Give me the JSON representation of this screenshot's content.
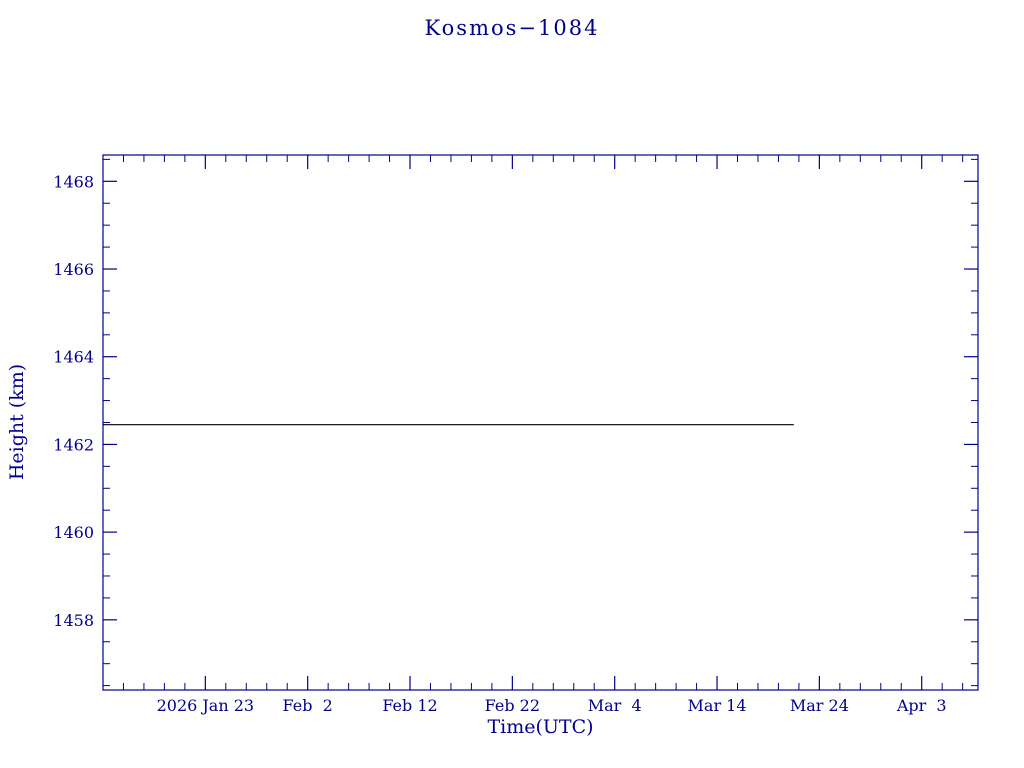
{
  "page": {
    "background": "#ffffff",
    "accent": "#00008b"
  },
  "chart_data": {
    "type": "line",
    "title": "Kosmos−1084",
    "xlabel": "Time(UTC)",
    "ylabel": "Height (km)",
    "axis_color": "#00008b",
    "grid": false,
    "x_domain": [
      -10,
      75.5
    ],
    "x_major_ticks": [
      {
        "day": 0,
        "label": "2026 Jan 23"
      },
      {
        "day": 10,
        "label": "Feb  2"
      },
      {
        "day": 20,
        "label": "Feb 12"
      },
      {
        "day": 30,
        "label": "Feb 22"
      },
      {
        "day": 40,
        "label": "Mar  4"
      },
      {
        "day": 50,
        "label": "Mar 14"
      },
      {
        "day": 60,
        "label": "Mar 24"
      },
      {
        "day": 70,
        "label": "Apr  3"
      }
    ],
    "x_minor_step": 2,
    "ylim": [
      1456.4,
      1468.6
    ],
    "y_major_ticks": [
      1458,
      1460,
      1462,
      1464,
      1466,
      1468
    ],
    "y_minor_step": 0.5,
    "series": [
      {
        "name": "height",
        "color": "#000000",
        "points": [
          [
            -10,
            1462.45
          ],
          [
            57.5,
            1462.45
          ]
        ]
      }
    ]
  }
}
